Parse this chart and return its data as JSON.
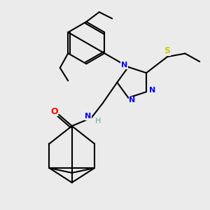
{
  "background_color": "#ebebeb",
  "bond_color": "#000000",
  "atom_colors": {
    "N": "#0000ff",
    "O": "#ff0000",
    "S": "#cccc00",
    "C": "#000000",
    "H": "#5aaa99"
  },
  "figsize": [
    3.0,
    3.0
  ],
  "dpi": 100
}
